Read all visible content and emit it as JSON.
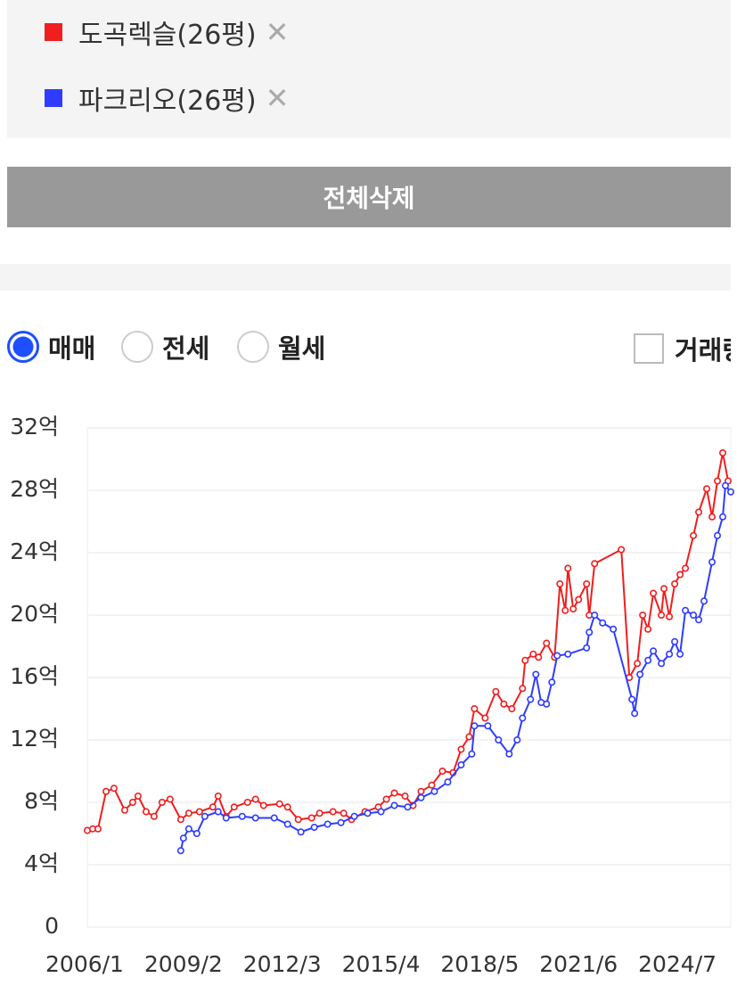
{
  "ui": {
    "delete_button": "전체삭제",
    "radios": [
      "매매",
      "전세",
      "월세"
    ],
    "checkbox_label": "거래량"
  },
  "chart_data": {
    "type": "line",
    "series": [
      {
        "name": "도곡렉슬(26평)",
        "color": "#f01e1e",
        "x": [
          "2006/2",
          "2006/4",
          "2006/6",
          "2006/9",
          "2006/12",
          "2007/4",
          "2007/7",
          "2007/9",
          "2007/12",
          "2008/3",
          "2008/6",
          "2008/9",
          "2009/1",
          "2009/4",
          "2009/8",
          "2010/1",
          "2010/3",
          "2010/6",
          "2010/9",
          "2011/2",
          "2011/5",
          "2011/8",
          "2012/2",
          "2012/5",
          "2012/9",
          "2013/2",
          "2013/5",
          "2013/10",
          "2014/2",
          "2014/5",
          "2014/10",
          "2015/3",
          "2015/6",
          "2015/9",
          "2016/1",
          "2016/4",
          "2016/7",
          "2016/11",
          "2017/3",
          "2017/7",
          "2017/10",
          "2018/1",
          "2018/3",
          "2018/7",
          "2018/11",
          "2019/2",
          "2019/5",
          "2019/9",
          "2019/10",
          "2020/1",
          "2020/3",
          "2020/6",
          "2020/9",
          "2020/11",
          "2021/1",
          "2021/2",
          "2021/4",
          "2021/6",
          "2021/9",
          "2021/10",
          "2021/12",
          "2022/10",
          "2023/1",
          "2023/4",
          "2023/6",
          "2023/8",
          "2023/10",
          "2024/1",
          "2024/2",
          "2024/4",
          "2024/6",
          "2024/8",
          "2024/10",
          "2025/1",
          "2025/3",
          "2025/6",
          "2025/8",
          "2025/10",
          "2025/12",
          "2026/2"
        ],
        "values": [
          6.2,
          6.3,
          6.3,
          8.7,
          8.9,
          7.5,
          8.0,
          8.4,
          7.4,
          7.1,
          8.0,
          8.2,
          6.9,
          7.3,
          7.4,
          7.7,
          8.4,
          7.1,
          7.7,
          8.0,
          8.2,
          7.8,
          7.9,
          7.7,
          6.9,
          7.0,
          7.3,
          7.4,
          7.3,
          6.9,
          7.4,
          7.7,
          8.2,
          8.6,
          8.4,
          7.8,
          8.7,
          9.1,
          10.0,
          9.9,
          11.4,
          12.2,
          14.0,
          13.4,
          15.1,
          14.3,
          14.0,
          15.3,
          17.1,
          17.5,
          17.3,
          18.2,
          17.3,
          22.0,
          20.3,
          23.0,
          20.4,
          21.0,
          22.0,
          20.0,
          23.3,
          24.2,
          16.0,
          16.9,
          20.0,
          19.1,
          21.4,
          20.0,
          21.7,
          19.9,
          22.0,
          22.6,
          23.0,
          25.1,
          26.6,
          28.1,
          26.3,
          28.6,
          30.4,
          28.6
        ]
      },
      {
        "name": "파크리오(26평)",
        "color": "#2f3cff",
        "x": [
          "2009/1",
          "2009/2",
          "2009/4",
          "2009/7",
          "2009/10",
          "2010/3",
          "2010/6",
          "2010/12",
          "2011/5",
          "2011/12",
          "2012/5",
          "2012/10",
          "2013/3",
          "2013/8",
          "2014/1",
          "2014/6",
          "2014/11",
          "2015/4",
          "2015/9",
          "2016/2",
          "2016/7",
          "2016/12",
          "2017/5",
          "2017/10",
          "2018/2",
          "2018/3",
          "2018/8",
          "2018/12",
          "2019/4",
          "2019/7",
          "2019/9",
          "2019/12",
          "2020/2",
          "2020/4",
          "2020/6",
          "2020/8",
          "2020/10",
          "2021/2",
          "2021/9",
          "2021/10",
          "2021/12",
          "2022/3",
          "2022/7",
          "2023/2",
          "2023/3",
          "2023/5",
          "2023/8",
          "2023/10",
          "2024/1",
          "2024/4",
          "2024/6",
          "2024/8",
          "2024/10",
          "2025/1",
          "2025/3",
          "2025/5",
          "2025/8",
          "2025/10",
          "2025/12",
          "2026/1",
          "2026/3"
        ],
        "values": [
          4.9,
          5.7,
          6.3,
          6.0,
          7.1,
          7.4,
          7.0,
          7.1,
          7.0,
          7.0,
          6.6,
          6.1,
          6.4,
          6.6,
          6.7,
          7.1,
          7.3,
          7.4,
          7.8,
          7.7,
          8.3,
          8.7,
          9.3,
          10.4,
          11.1,
          12.9,
          12.9,
          12.0,
          11.1,
          12.0,
          13.4,
          14.6,
          16.2,
          14.4,
          14.3,
          15.7,
          17.4,
          17.5,
          17.9,
          18.9,
          20.0,
          19.5,
          19.1,
          14.6,
          13.7,
          16.2,
          17.1,
          17.7,
          16.9,
          17.5,
          18.3,
          17.5,
          20.3,
          20.0,
          19.7,
          20.9,
          23.4,
          25.1,
          26.3,
          28.3,
          27.9
        ]
      }
    ],
    "xlim": [
      "2006/1",
      "2026/3"
    ],
    "xticks": [
      "2006/1",
      "2009/2",
      "2012/3",
      "2015/4",
      "2018/5",
      "2021/6",
      "2024/7"
    ],
    "ylim": [
      0,
      32
    ],
    "yticks": [
      0,
      {
        "value": 4,
        "label": "4억"
      },
      {
        "value": 8,
        "label": "8억"
      },
      {
        "value": 12,
        "label": "12억"
      },
      {
        "value": 16,
        "label": "16억"
      },
      {
        "value": 20,
        "label": "20억"
      },
      {
        "value": 24,
        "label": "24억"
      },
      {
        "value": 28,
        "label": "28억"
      },
      {
        "value": 32,
        "label": "32억"
      }
    ],
    "grid": true
  }
}
